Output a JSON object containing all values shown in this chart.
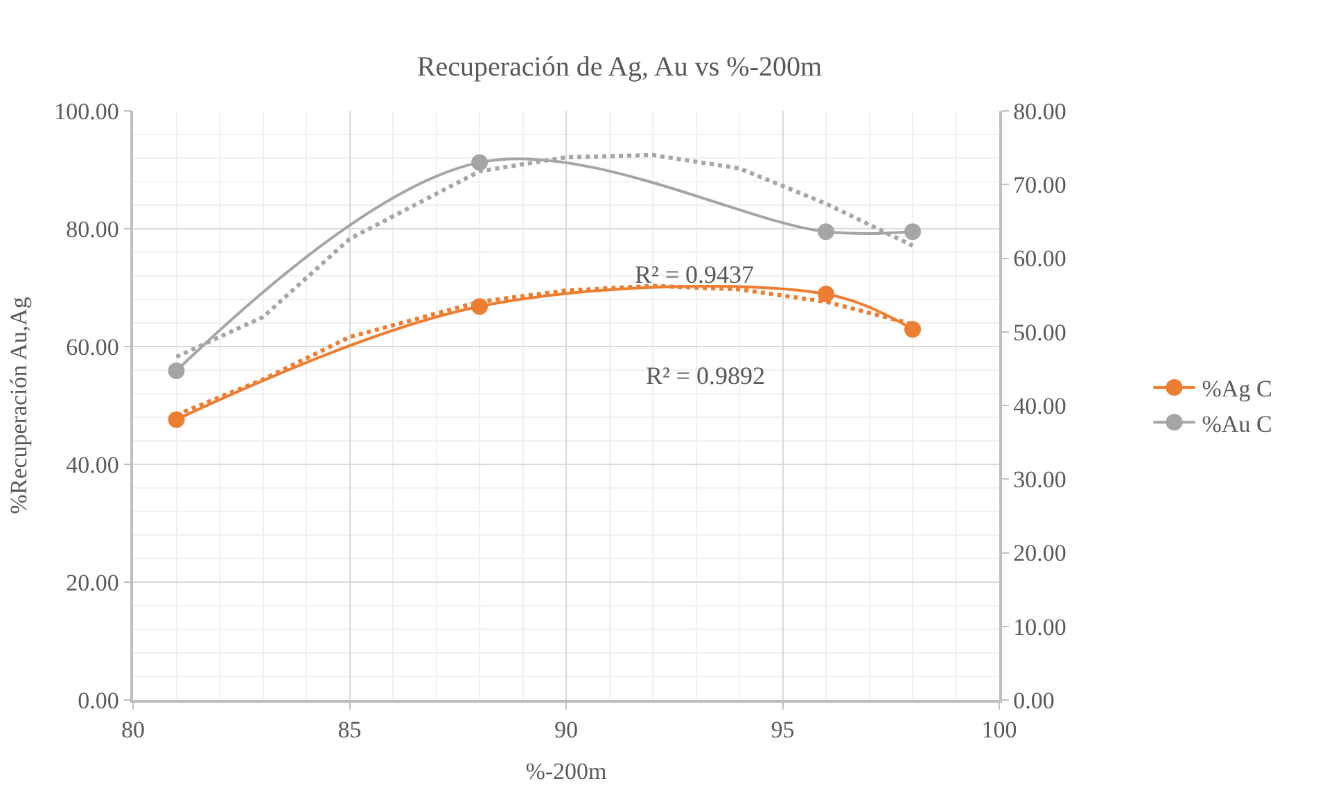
{
  "chart_data": {
    "type": "line",
    "title": "Recuperación de Ag, Au vs %-200m",
    "xlabel": "%-200m",
    "ylabel": "%Recuperación Au,Ag",
    "xlim": [
      80,
      100
    ],
    "xticks": [
      80,
      85,
      90,
      95,
      100
    ],
    "ylim": [
      0,
      100
    ],
    "yticks": [
      {
        "value": 0,
        "label": "0.00"
      },
      {
        "value": 20,
        "label": "20.00"
      },
      {
        "value": 40,
        "label": "40.00"
      },
      {
        "value": 60,
        "label": "60.00"
      },
      {
        "value": 80,
        "label": "80.00"
      },
      {
        "value": 100,
        "label": "100.00"
      }
    ],
    "y2lim": [
      0,
      80
    ],
    "y2ticks": [
      {
        "value": 0,
        "label": "0.00"
      },
      {
        "value": 10,
        "label": "10.00"
      },
      {
        "value": 20,
        "label": "20.00"
      },
      {
        "value": 30,
        "label": "30.00"
      },
      {
        "value": 40,
        "label": "40.00"
      },
      {
        "value": 50,
        "label": "50.00"
      },
      {
        "value": 60,
        "label": "60.00"
      },
      {
        "value": 70,
        "label": "70.00"
      },
      {
        "value": 80,
        "label": "80.00"
      }
    ],
    "grid": true,
    "legend": "right",
    "marker": "circle",
    "line_style": "solid",
    "x": [
      81,
      88,
      96,
      98
    ],
    "series": [
      {
        "name": "%Ag C",
        "color": "#ed7d31",
        "values": [
          47.6,
          66.8,
          68.9,
          62.9
        ]
      },
      {
        "name": "%Au C",
        "color": "#a5a5a5",
        "axis": "y2",
        "values": [
          44.7,
          73.0,
          63.6,
          63.6
        ]
      },
      {
        "type": "line",
        "color": "#ed7d31",
        "marker": "none",
        "line_style": "dotted",
        "x": [
          81,
          83,
          85,
          88,
          90,
          92,
          94,
          96,
          98
        ],
        "values": [
          48.4,
          54.4,
          61.6,
          67.6,
          69.5,
          70.3,
          69.7,
          67.6,
          63.8
        ]
      },
      {
        "type": "line",
        "color": "#a5a5a5",
        "marker": "none",
        "line_style": "dotted",
        "axis": "y2",
        "x": [
          81,
          83,
          85,
          88,
          90,
          92,
          94,
          96,
          98
        ],
        "values": [
          46.6,
          52.0,
          62.6,
          71.8,
          73.7,
          74.0,
          72.2,
          67.4,
          61.7
        ]
      }
    ],
    "annotations": [
      "R² = 0.9892",
      "R² = 0.9437"
    ]
  }
}
